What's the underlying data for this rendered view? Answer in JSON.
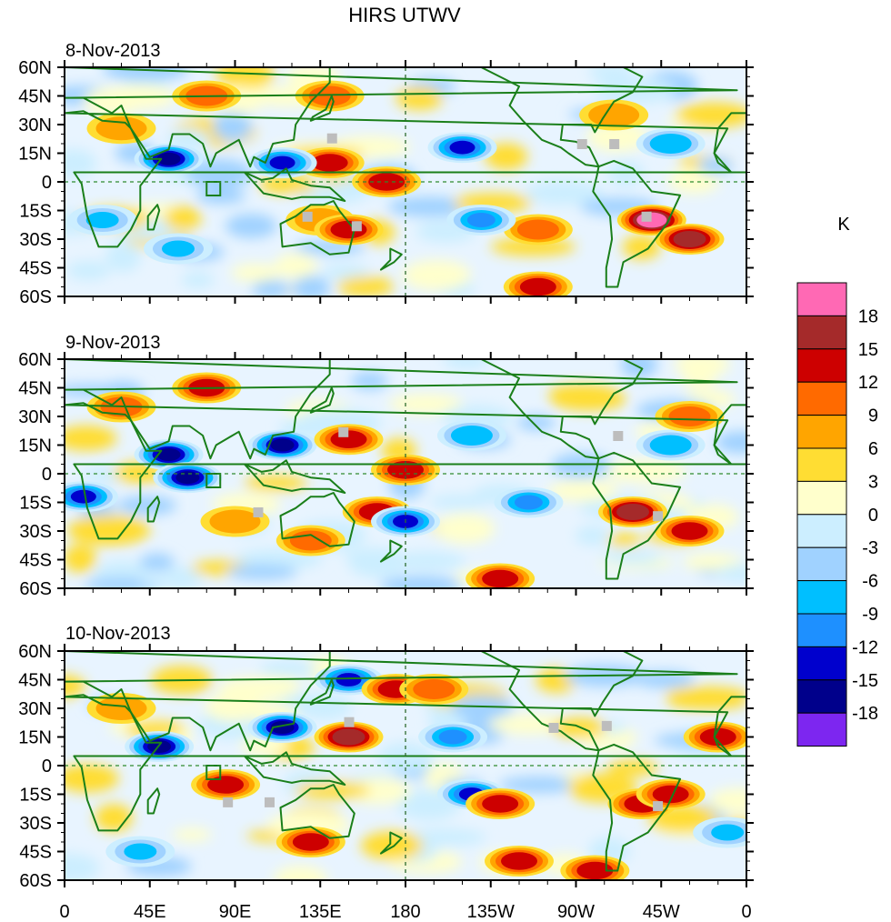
{
  "chart_data": {
    "type": "heatmap",
    "title": "HIRS UTWV",
    "colorbar": {
      "unit_label": "K",
      "orientation": "vertical",
      "placement": "right",
      "levels": [
        18,
        15,
        12,
        9,
        6,
        3,
        0,
        -3,
        -6,
        -9,
        -12,
        -15,
        -18
      ],
      "colors": [
        "#ff69b4",
        "#a52a2a",
        "#cd0000",
        "#ff6a00",
        "#ffa500",
        "#ffdd33",
        "#ffffcc",
        "#cceeff",
        "#a0d2ff",
        "#00bfff",
        "#1e90ff",
        "#0000cd",
        "#00008b",
        "#7d26f0"
      ]
    },
    "xaxis": {
      "range_degrees_east": [
        0,
        360
      ],
      "tick_labels": [
        "0",
        "45E",
        "90E",
        "135E",
        "180",
        "135W",
        "90W",
        "45W",
        "0"
      ],
      "tick_values": [
        0,
        45,
        90,
        135,
        180,
        225,
        270,
        315,
        360
      ]
    },
    "yaxis": {
      "range_degrees": [
        -60,
        60
      ],
      "tick_labels": [
        "60N",
        "45N",
        "30N",
        "15N",
        "0",
        "15S",
        "30S",
        "45S",
        "60S"
      ],
      "tick_values": [
        60,
        45,
        30,
        15,
        0,
        -15,
        -30,
        -45,
        -60
      ]
    },
    "reference_lines": [
      "equator dashed green",
      "dateline 180 dashed green"
    ],
    "overlays": [
      "continental outlines (green)",
      "country borders",
      "US state borders",
      "missing-data cells (gray)",
      "open green square near 80E 5S"
    ],
    "panels": [
      {
        "label": "8-Nov-2013",
        "features": [
          {
            "lon": 140,
            "lat": 10,
            "value": 14
          },
          {
            "lon": 170,
            "lat": 0,
            "value": 13
          },
          {
            "lon": 310,
            "lat": -20,
            "value": 19
          },
          {
            "lon": 330,
            "lat": -30,
            "value": 16
          },
          {
            "lon": 55,
            "lat": 12,
            "value": -17
          },
          {
            "lon": 115,
            "lat": 10,
            "value": -14
          },
          {
            "lon": 210,
            "lat": 18,
            "value": -14
          },
          {
            "lon": 30,
            "lat": 28,
            "value": 8
          },
          {
            "lon": 75,
            "lat": 45,
            "value": 11
          },
          {
            "lon": 135,
            "lat": -20,
            "value": 7
          },
          {
            "lon": 150,
            "lat": -25,
            "value": 14
          },
          {
            "lon": 250,
            "lat": -55,
            "value": 12
          },
          {
            "lon": 250,
            "lat": -25,
            "value": 9
          },
          {
            "lon": 290,
            "lat": 35,
            "value": 8
          },
          {
            "lon": 320,
            "lat": 20,
            "value": -9
          },
          {
            "lon": 220,
            "lat": -20,
            "value": -10
          },
          {
            "lon": 20,
            "lat": -20,
            "value": -8
          },
          {
            "lon": 60,
            "lat": -35,
            "value": -7
          },
          {
            "lon": 140,
            "lat": 45,
            "value": 9
          }
        ]
      },
      {
        "label": "9-Nov-2013",
        "features": [
          {
            "lon": 55,
            "lat": 10,
            "value": -17
          },
          {
            "lon": 65,
            "lat": -2,
            "value": -16
          },
          {
            "lon": 115,
            "lat": 15,
            "value": -17
          },
          {
            "lon": 10,
            "lat": -12,
            "value": -13
          },
          {
            "lon": 150,
            "lat": 18,
            "value": 13
          },
          {
            "lon": 180,
            "lat": 2,
            "value": 13
          },
          {
            "lon": 165,
            "lat": -20,
            "value": 13
          },
          {
            "lon": 300,
            "lat": -20,
            "value": 17
          },
          {
            "lon": 330,
            "lat": -30,
            "value": 14
          },
          {
            "lon": 30,
            "lat": 35,
            "value": 9
          },
          {
            "lon": 75,
            "lat": 45,
            "value": 12
          },
          {
            "lon": 130,
            "lat": -35,
            "value": 10
          },
          {
            "lon": 230,
            "lat": -55,
            "value": 12
          },
          {
            "lon": 215,
            "lat": 20,
            "value": -9
          },
          {
            "lon": 320,
            "lat": 15,
            "value": -9
          },
          {
            "lon": 180,
            "lat": -25,
            "value": -13
          },
          {
            "lon": 245,
            "lat": -15,
            "value": -10
          },
          {
            "lon": 90,
            "lat": -25,
            "value": 8
          },
          {
            "lon": 330,
            "lat": 30,
            "value": 9
          }
        ]
      },
      {
        "label": "10-Nov-2013",
        "features": [
          {
            "lon": 50,
            "lat": 10,
            "value": -17
          },
          {
            "lon": 115,
            "lat": 20,
            "value": -16
          },
          {
            "lon": 150,
            "lat": 45,
            "value": -13
          },
          {
            "lon": 215,
            "lat": -15,
            "value": -13
          },
          {
            "lon": 205,
            "lat": 15,
            "value": -10
          },
          {
            "lon": 150,
            "lat": 15,
            "value": 16
          },
          {
            "lon": 130,
            "lat": -40,
            "value": 13
          },
          {
            "lon": 85,
            "lat": -10,
            "value": 12
          },
          {
            "lon": 175,
            "lat": 40,
            "value": 13
          },
          {
            "lon": 230,
            "lat": -20,
            "value": 12
          },
          {
            "lon": 305,
            "lat": -20,
            "value": 14
          },
          {
            "lon": 320,
            "lat": -15,
            "value": 13
          },
          {
            "lon": 345,
            "lat": 15,
            "value": 13
          },
          {
            "lon": 240,
            "lat": -50,
            "value": 12
          },
          {
            "lon": 280,
            "lat": -55,
            "value": 12
          },
          {
            "lon": 195,
            "lat": 40,
            "value": 9
          },
          {
            "lon": 30,
            "lat": 30,
            "value": 8
          },
          {
            "lon": 40,
            "lat": -45,
            "value": -8
          },
          {
            "lon": 350,
            "lat": -35,
            "value": -8
          }
        ]
      }
    ]
  }
}
